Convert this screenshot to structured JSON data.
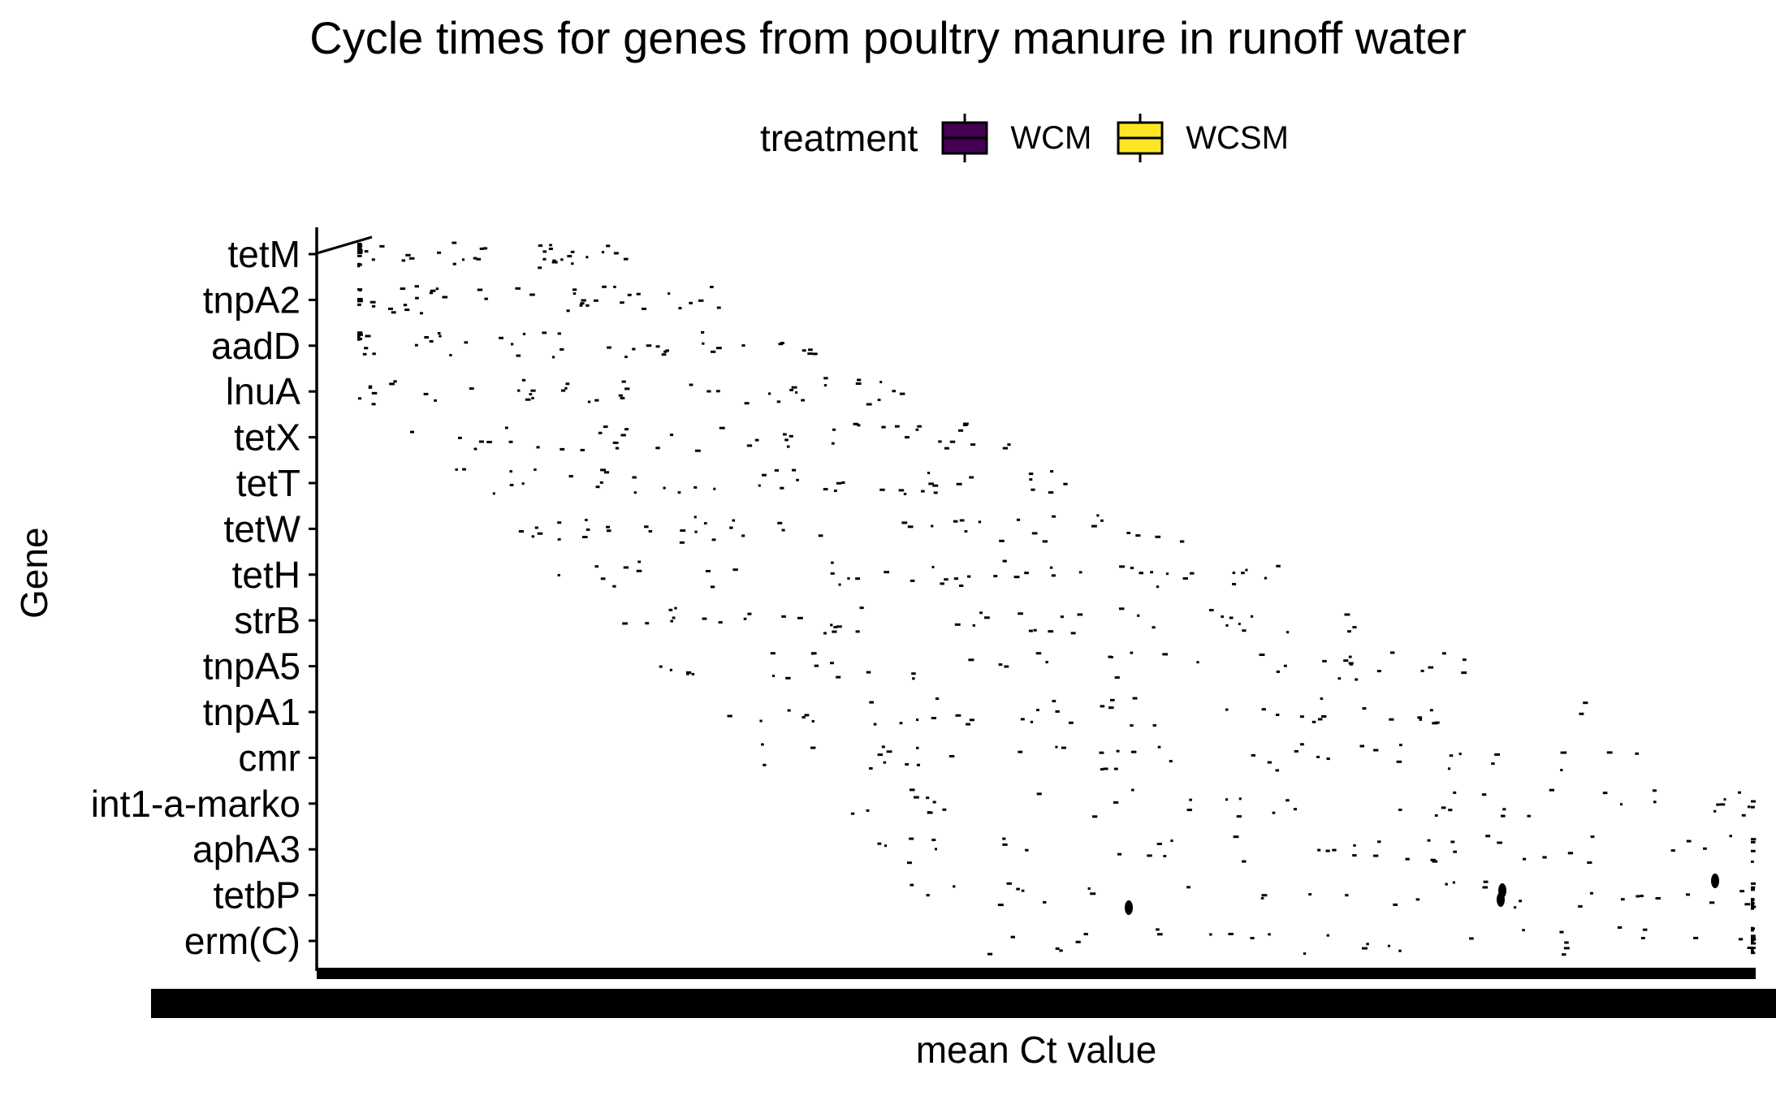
{
  "chart_data": {
    "type": "box",
    "title": "Cycle times for genes from poultry manure in runoff water",
    "xlabel": "mean Ct value",
    "ylabel": "Gene",
    "legend": {
      "title": "treatment",
      "position": "top",
      "entries": [
        {
          "name": "WCM",
          "color": "#440154"
        },
        {
          "name": "WCSM",
          "color": "#FDE725"
        }
      ]
    },
    "categories": [
      "tetM",
      "tnpA2",
      "aadD",
      "lnuA",
      "tetX",
      "tetT",
      "tetW",
      "tetH",
      "strB",
      "tnpA5",
      "tnpA1",
      "cmr",
      "int1-a-marko",
      "aphA3",
      "tetbP",
      "erm(C)"
    ],
    "x_tick_labels_overplotted": true,
    "grid": false
  }
}
